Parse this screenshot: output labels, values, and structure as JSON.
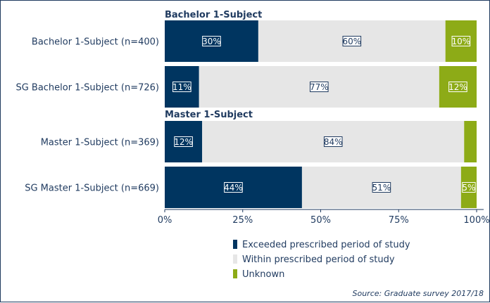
{
  "chart_data": {
    "type": "bar",
    "orientation": "horizontal",
    "stacked": true,
    "groups": [
      {
        "title": "Bachelor 1-Subject",
        "categories": [
          "Bachelor 1-Subject (n=400)",
          "SG Bachelor 1-Subject (n=726)"
        ]
      },
      {
        "title": "Master 1-Subject",
        "categories": [
          "Master 1-Subject (n=369)",
          "SG Master 1-Subject (n=669)"
        ]
      }
    ],
    "categories": [
      "Bachelor 1-Subject (n=400)",
      "SG Bachelor 1-Subject (n=726)",
      "Master 1-Subject (n=369)",
      "SG Master 1-Subject (n=669)"
    ],
    "series": [
      {
        "name": "Exceeded prescribed period of study",
        "color": "#003560",
        "values": [
          30,
          11,
          12,
          44
        ],
        "labels": [
          "30%",
          "11%",
          "12%",
          "44%"
        ]
      },
      {
        "name": "Within prescribed period of study",
        "color": "#e6e6e6",
        "values": [
          60,
          77,
          84,
          51
        ],
        "labels": [
          "60%",
          "77%",
          "84%",
          "51%"
        ]
      },
      {
        "name": "Unknown",
        "color": "#8dab17",
        "values": [
          10,
          12,
          4,
          5
        ],
        "labels": [
          "10%",
          "12%",
          "",
          "5%"
        ]
      }
    ],
    "xlim": [
      0,
      100
    ],
    "xticks": [
      0,
      25,
      50,
      75,
      100
    ],
    "xtick_labels": [
      "0%",
      "25%",
      "50%",
      "75%",
      "100%"
    ],
    "legend_position": "bottom-right"
  },
  "source_note": "Source: Graduate survey 2017/18"
}
